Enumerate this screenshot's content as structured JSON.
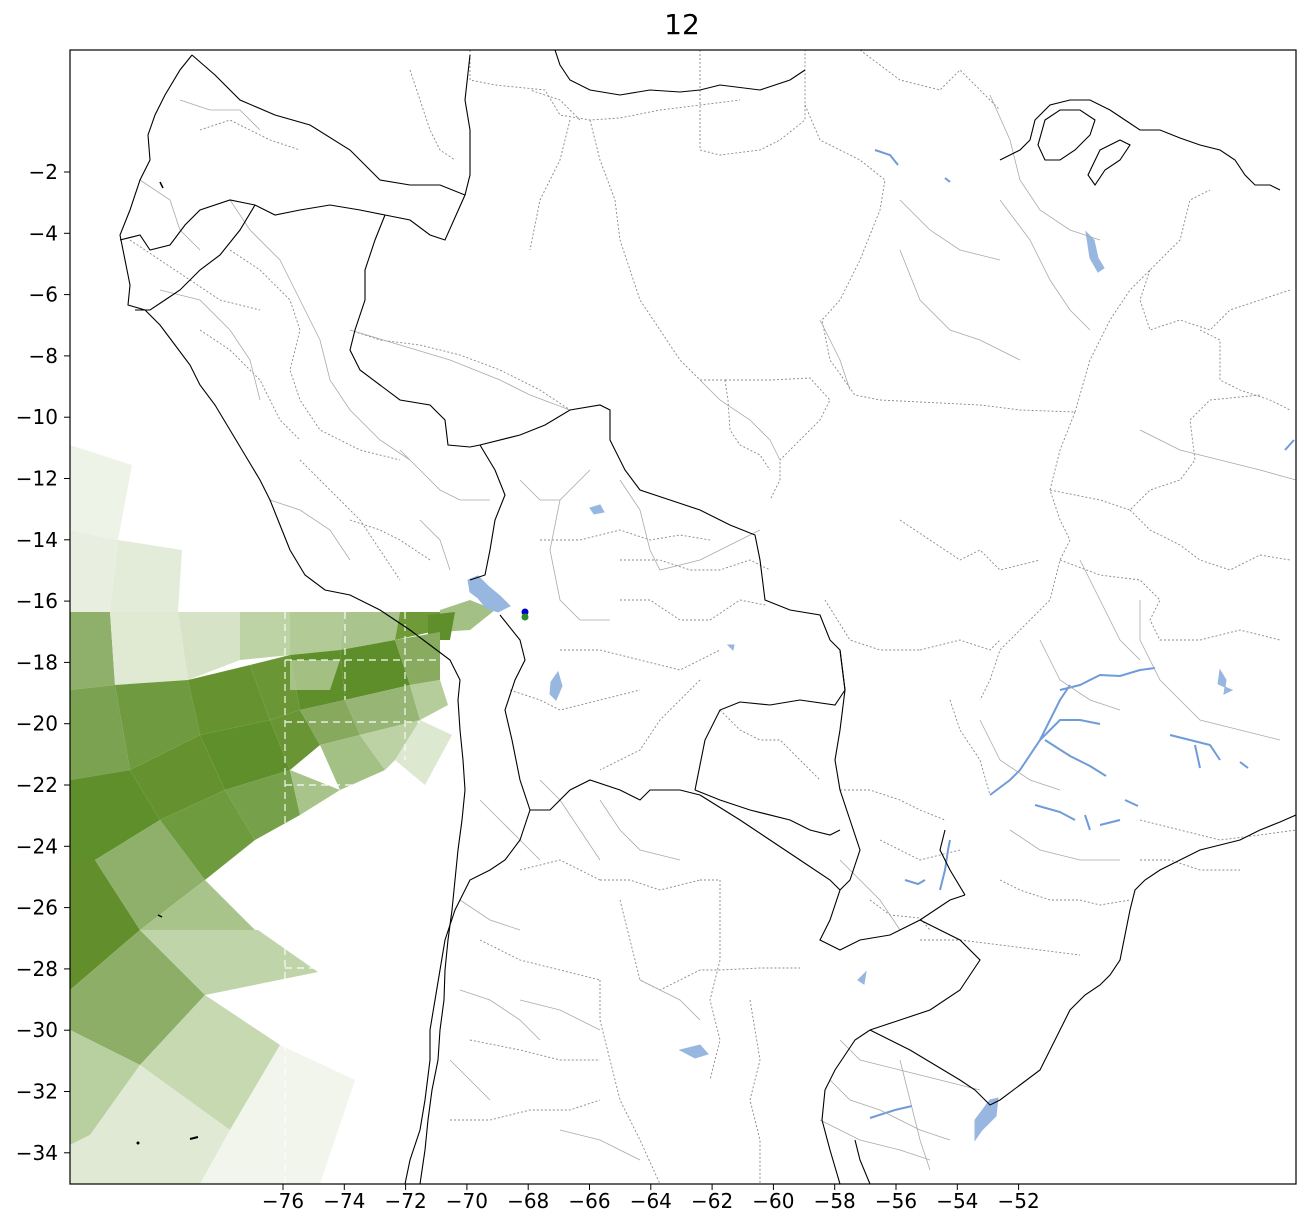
{
  "title": "12",
  "map": {
    "lon_range": [
      -80,
      -47
    ],
    "lat_range": [
      -35,
      1
    ],
    "x_ticks": [
      "−76",
      "−74",
      "−72",
      "−70",
      "−68",
      "−66",
      "−64",
      "−62",
      "−60",
      "−58",
      "−56",
      "−54",
      "−52"
    ],
    "y_ticks": [
      "−2",
      "−4",
      "−6",
      "−8",
      "−10",
      "−12",
      "−14",
      "−16",
      "−18",
      "−20",
      "−22",
      "−24",
      "−26",
      "−28",
      "−30",
      "−32",
      "−34"
    ],
    "colors": {
      "dark_green": "#5f8f2a",
      "mid_green": "#86a95f",
      "light_green": "#c9d9b3",
      "pale_green": "#eaf0e2",
      "water": "#97b6e0",
      "marker_blue": "#0000cc",
      "marker_green": "#2a8c2a"
    },
    "markers": [
      {
        "name": "blue-point",
        "lon": -68.2,
        "lat": -16.3
      },
      {
        "name": "green-point",
        "lon": -68.2,
        "lat": -16.5
      }
    ]
  }
}
